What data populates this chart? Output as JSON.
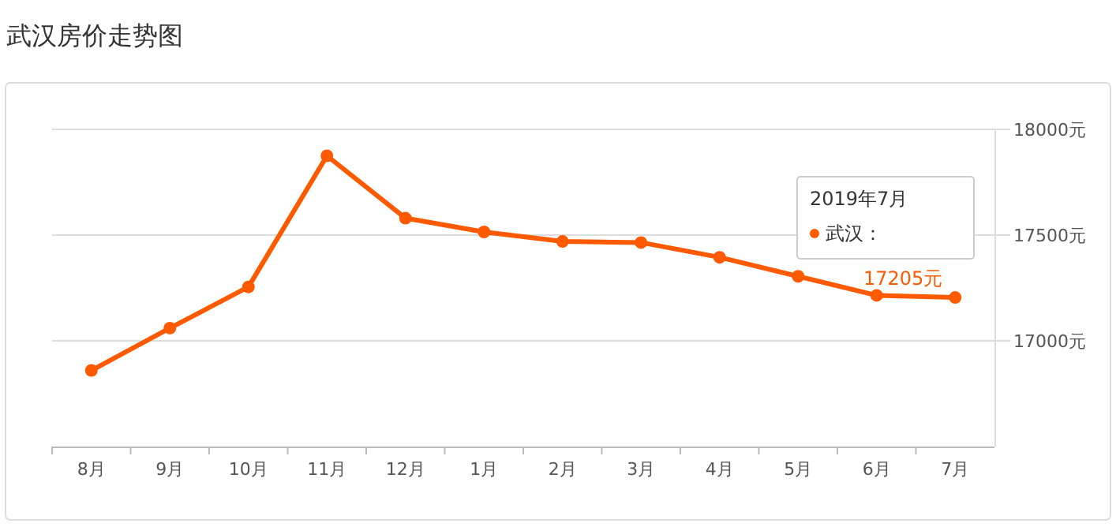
{
  "chart_data": {
    "type": "line",
    "title": "武汉房价走势图",
    "categories": [
      "8月",
      "9月",
      "10月",
      "11月",
      "12月",
      "1月",
      "2月",
      "3月",
      "4月",
      "5月",
      "6月",
      "7月"
    ],
    "series": [
      {
        "name": "武汉：",
        "color": "#ff5a00",
        "values": [
          16860,
          17060,
          17255,
          17875,
          17580,
          17515,
          17470,
          17465,
          17395,
          17305,
          17215,
          17205
        ],
        "value_labels": [
          null,
          null,
          null,
          null,
          null,
          null,
          null,
          null,
          null,
          null,
          null,
          "17205元"
        ]
      }
    ],
    "ylim": [
      16500,
      18000
    ],
    "yticks": [
      {
        "value": 17000,
        "label": "17000元"
      },
      {
        "value": 17500,
        "label": "17500元"
      },
      {
        "value": 18000,
        "label": "18000元"
      }
    ],
    "grid": "y",
    "legend": "right",
    "marker": "circle",
    "line_style": "solid",
    "annotations": [
      "2019年7月"
    ]
  }
}
